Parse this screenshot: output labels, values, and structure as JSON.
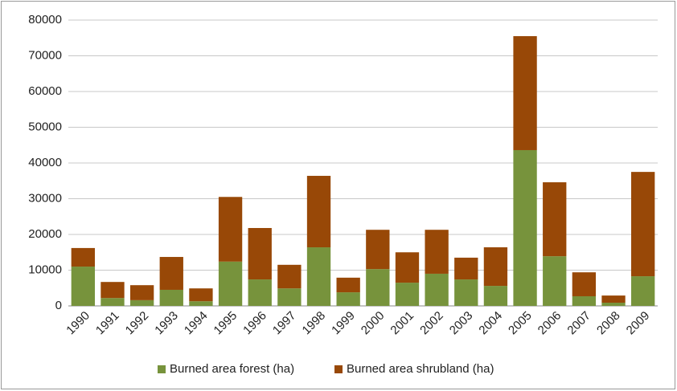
{
  "chart_data": {
    "type": "stacked_bar",
    "categories": [
      "1990",
      "1991",
      "1992",
      "1993",
      "1994",
      "1995",
      "1996",
      "1997",
      "1998",
      "1999",
      "2000",
      "2001",
      "2002",
      "2003",
      "2004",
      "2005",
      "2006",
      "2007",
      "2008",
      "2009"
    ],
    "series": [
      {
        "name": "Burned area forest (ha)",
        "color": "#77933c",
        "values": [
          11000,
          2200,
          1600,
          4500,
          1300,
          12400,
          7400,
          4900,
          16400,
          3800,
          10300,
          6500,
          9000,
          7400,
          5600,
          43600,
          13900,
          2700,
          900,
          8300
        ]
      },
      {
        "name": "Burned area shrubland (ha)",
        "color": "#984807",
        "values": [
          5200,
          4500,
          4200,
          9200,
          3600,
          18100,
          14400,
          6600,
          20000,
          4100,
          11000,
          8500,
          12300,
          6100,
          10800,
          31900,
          20700,
          6700,
          2000,
          29200
        ]
      }
    ],
    "ylim": [
      0,
      80000
    ],
    "yticks": [
      0,
      10000,
      20000,
      30000,
      40000,
      50000,
      60000,
      70000,
      80000
    ],
    "grid": true,
    "legend": "bottom"
  }
}
